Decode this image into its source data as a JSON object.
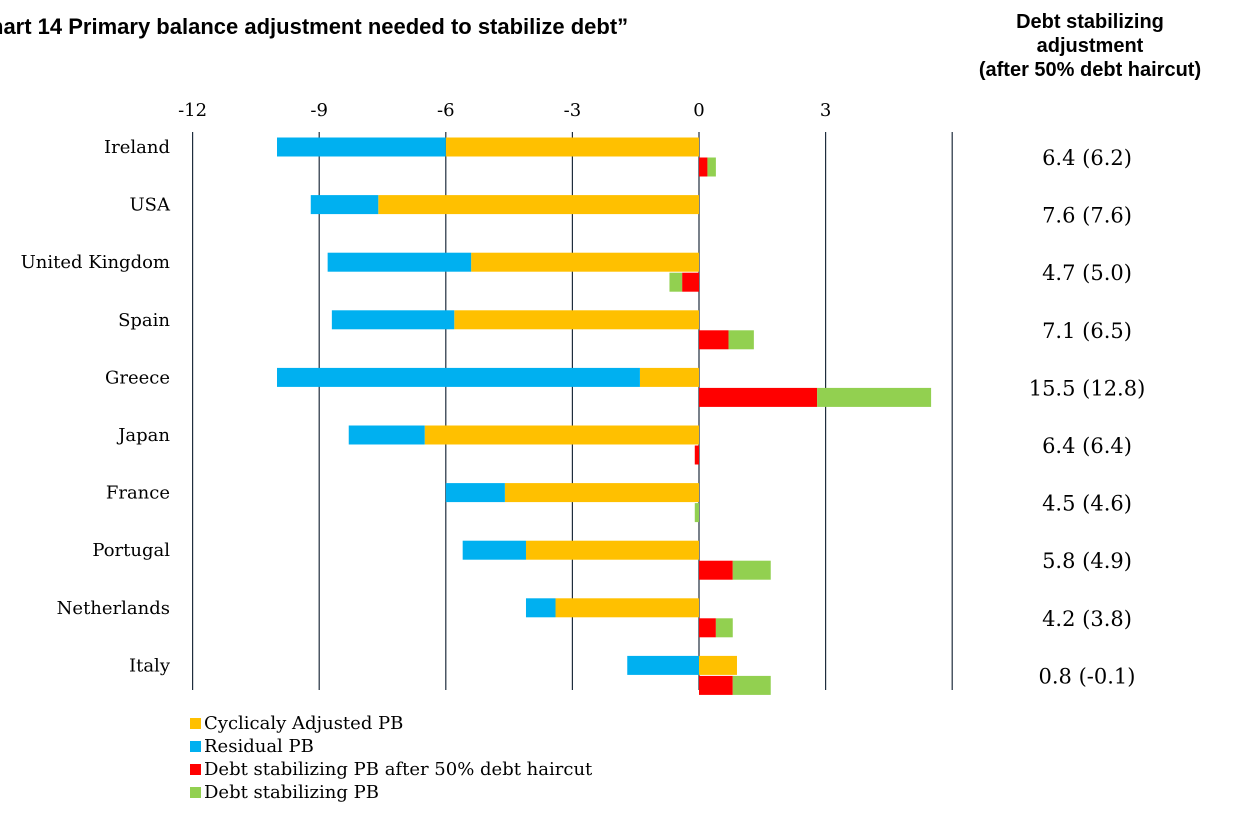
{
  "title": "hart 14 Primary balance adjustment needed to stabilize debt”",
  "side_header": {
    "lines": [
      "Debt stabilizing",
      "adjustment",
      "(after 50% debt haircut)"
    ]
  },
  "colors": {
    "cyclical": "#FFC000",
    "residual": "#00B0F0",
    "haircut": "#FF0000",
    "stabilizing": "#92D050",
    "gridline": "#1F2D3D"
  },
  "chart_data": {
    "type": "bar",
    "orientation": "horizontal",
    "stacked": true,
    "xlim": [
      -12,
      6
    ],
    "x_ticks": [
      -12,
      -9,
      -6,
      -3,
      0,
      3
    ],
    "categories": [
      "Ireland",
      "USA",
      "United Kingdom",
      "Spain",
      "Greece",
      "Japan",
      "France",
      "Portugal",
      "Netherlands",
      "Italy"
    ],
    "series": [
      {
        "name": "Cyclicaly Adjusted PB",
        "color_key": "cyclical",
        "row": "upper",
        "values": [
          -6.0,
          -7.6,
          -5.4,
          -5.8,
          -1.4,
          -6.5,
          -4.6,
          -4.1,
          -3.4,
          0.9
        ]
      },
      {
        "name": "Residual PB",
        "color_key": "residual",
        "row": "upper",
        "values": [
          -4.0,
          -1.6,
          -3.4,
          -2.9,
          -8.6,
          -1.8,
          -1.4,
          -1.5,
          -0.7,
          -1.7
        ]
      },
      {
        "name": "Debt stabilizing PB after 50% debt haircut",
        "color_key": "haircut",
        "row": "lower",
        "values": [
          0.2,
          0.0,
          -0.4,
          0.7,
          2.8,
          -0.1,
          0.0,
          0.8,
          0.4,
          0.8
        ]
      },
      {
        "name": "Debt stabilizing PB",
        "color_key": "stabilizing",
        "row": "lower",
        "values": [
          0.2,
          0.0,
          -0.3,
          0.6,
          2.7,
          0.0,
          -0.1,
          0.9,
          0.4,
          0.9
        ]
      }
    ],
    "adjustments": [
      "6.4 (6.2)",
      "7.6 (7.6)",
      "4.7 (5.0)",
      "7.1 (6.5)",
      "15.5 (12.8)",
      "6.4 (6.4)",
      "4.5 (4.6)",
      "5.8 (4.9)",
      "4.2 (3.8)",
      "0.8 (-0.1)"
    ],
    "legend_order": [
      0,
      1,
      2,
      3
    ],
    "legend_position": "bottom-left",
    "grid": true
  }
}
